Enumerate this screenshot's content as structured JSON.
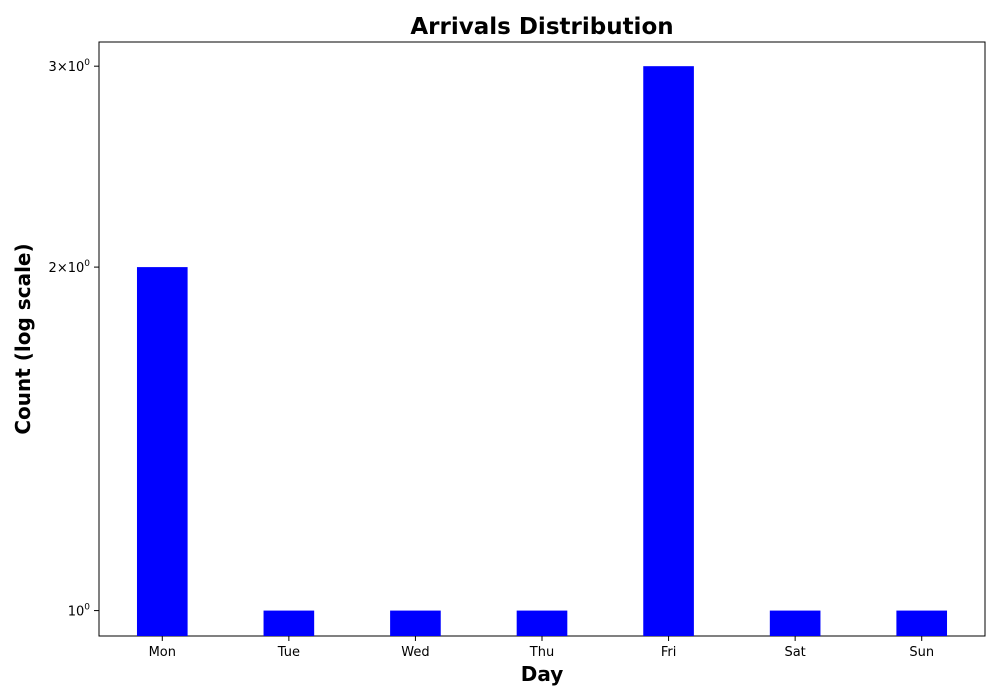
{
  "chart_data": {
    "type": "bar",
    "title": "Arrivals Distribution",
    "xlabel": "Day",
    "ylabel": "Count (log scale)",
    "y_scale": "log",
    "categories": [
      "Mon",
      "Tue",
      "Wed",
      "Thu",
      "Fri",
      "Sat",
      "Sun"
    ],
    "values": [
      2,
      1,
      1,
      1,
      3,
      1,
      1
    ],
    "ylim": [
      0.95,
      3.15
    ],
    "yticks": [
      {
        "value": 1,
        "mantissa": "",
        "base": "10",
        "exponent": "0"
      },
      {
        "value": 2,
        "mantissa": "2",
        "base": "10",
        "exponent": "0"
      },
      {
        "value": 3,
        "mantissa": "3",
        "base": "10",
        "exponent": "0"
      }
    ],
    "bar_color": "#0000ff",
    "grid": false,
    "legend": "none"
  }
}
